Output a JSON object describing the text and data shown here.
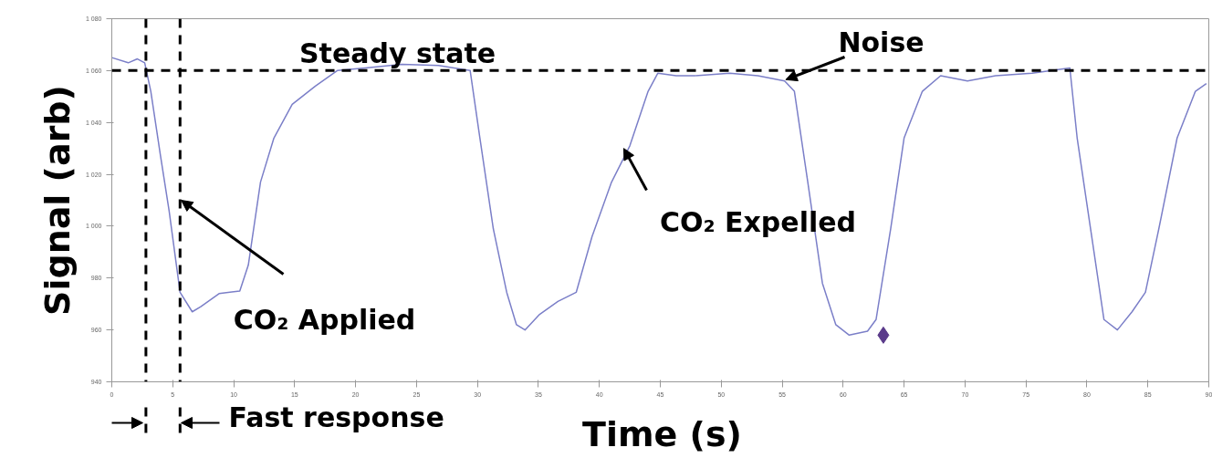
{
  "chart_data": {
    "type": "line",
    "xlabel": "Time (s)",
    "ylabel": "Signal (arb)",
    "xlim": [
      0,
      90
    ],
    "xticks": [
      0,
      5,
      10,
      15,
      20,
      25,
      30,
      35,
      40,
      45,
      50,
      55,
      60,
      65,
      70,
      75,
      80,
      85,
      90
    ],
    "ylim": [
      940,
      1080
    ],
    "yticks": [
      940,
      960,
      980,
      {
        "value": 1000,
        "label": "1 000"
      },
      {
        "value": 1020,
        "label": "1 020"
      },
      {
        "value": 1040,
        "label": "1 040"
      },
      {
        "value": 1060,
        "label": "1 060"
      },
      {
        "value": 1080,
        "label": "1 080"
      }
    ],
    "grid": false,
    "marker": "none",
    "line_style": "solid",
    "series": [
      {
        "color": "#7b7fc8",
        "x": [
          0,
          1.35,
          2.1,
          2.7,
          3.2,
          4,
          4.7,
          5.6,
          6.6,
          7.3,
          8.8,
          10.5,
          11.2,
          12.2,
          13.3,
          14.8,
          16.7,
          18.5,
          20.8,
          23.8,
          26.8,
          29.4,
          30.2,
          31.3,
          32.4,
          33.2,
          33.9,
          35.1,
          36.6,
          38.1,
          39.4,
          41,
          42.5,
          44,
          44.8,
          46.3,
          47.8,
          50.7,
          53,
          55.2,
          56,
          57.1,
          58.3,
          59.4,
          60.5,
          62,
          62.7,
          63.9,
          65,
          66.5,
          68,
          70.2,
          72.5,
          75.5,
          78.6,
          79.2,
          80.3,
          81.4,
          82.5,
          83.7,
          84.8,
          85.9,
          87.4,
          88.9,
          89.8
        ],
        "values": [
          1065,
          1063,
          1064.5,
          1063,
          1052,
          1027,
          1006,
          974.5,
          967,
          969,
          974,
          975,
          985,
          1017,
          1034,
          1047,
          1054,
          1060,
          1061,
          1062.4,
          1062,
          1060,
          1034,
          999,
          974.5,
          962,
          960,
          966,
          971,
          974.5,
          996,
          1017,
          1031,
          1052,
          1059,
          1058,
          1058,
          1059,
          1058,
          1056,
          1052,
          1017,
          978,
          962,
          958,
          959.5,
          964,
          999,
          1034,
          1052,
          1058,
          1056,
          1058,
          1059,
          1061,
          1034,
          999,
          964,
          960,
          967,
          974.5,
          999,
          1034,
          1052,
          1055
        ]
      },
      {
        "type": "scatter",
        "marker": "diamond",
        "color": "#5a3a8a",
        "x": [
          63.3
        ],
        "values": [
          958
        ]
      }
    ],
    "ref_lines": [
      {
        "axis": "y",
        "value": 1060,
        "color": "#000000",
        "line_style": "dashed"
      },
      {
        "axis": "x",
        "value": 2.8,
        "color": "#000000",
        "line_style": "dashed"
      },
      {
        "axis": "x",
        "value": 5.6,
        "color": "#000000",
        "line_style": "dashed"
      }
    ],
    "annotations": [
      "Steady state",
      {
        "text": "Noise",
        "x": 55.3,
        "y": 1056.5
      },
      {
        "text": "CO₂ Applied",
        "x": 5.7,
        "y": 1010
      },
      {
        "text": "CO₂ Expelled",
        "x": 42,
        "y": 1030
      },
      "Fast response"
    ]
  }
}
